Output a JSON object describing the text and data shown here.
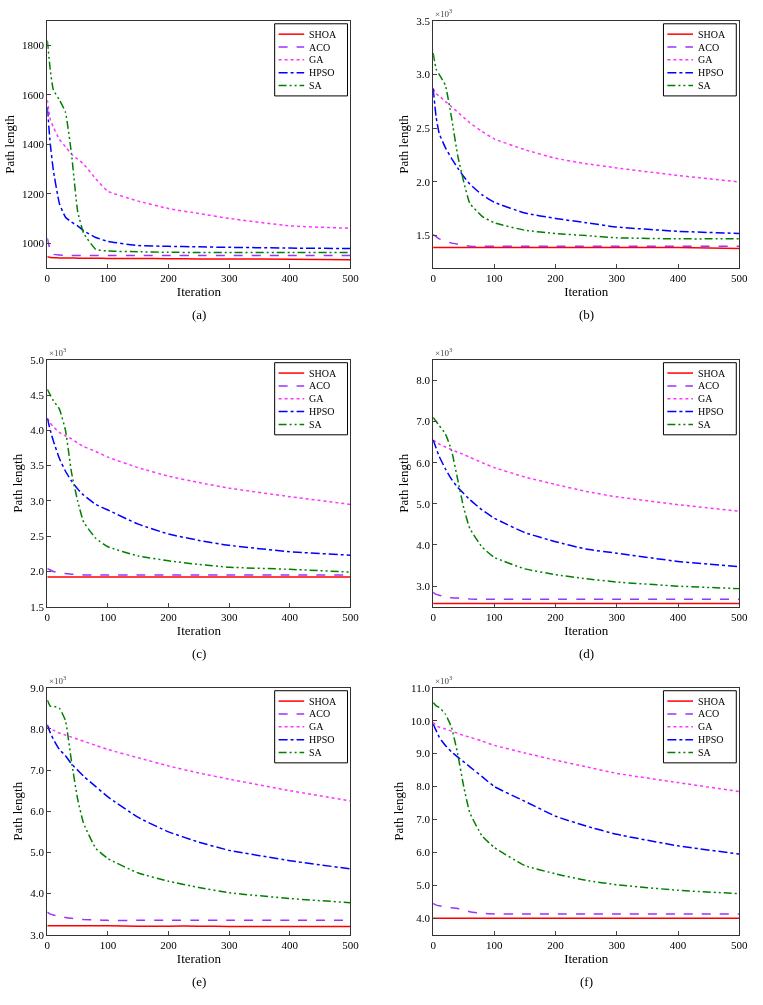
{
  "chart_data": [
    {
      "type": "line",
      "title": "(a)",
      "xlabel": "Iteration",
      "ylabel": "Path length",
      "legend": "top right",
      "x": [
        0,
        5,
        10,
        20,
        30,
        40,
        50,
        60,
        80,
        100,
        150,
        200,
        250,
        300,
        400,
        500
      ],
      "xlim": [
        0,
        500
      ],
      "xticks": [
        0,
        100,
        200,
        300,
        400,
        500
      ],
      "ylim": [
        900,
        1900
      ],
      "yticks": [
        1000,
        1200,
        1400,
        1600,
        1800
      ],
      "series": [
        {
          "name": "SHOA",
          "color": "#ff0000",
          "line_style": "solid",
          "values": [
            945,
            942,
            941,
            940,
            940,
            940,
            939,
            939,
            939,
            938,
            938,
            937,
            936,
            936,
            935,
            933
          ]
        },
        {
          "name": "ACO",
          "color": "#9933ff",
          "line_style": "dashed",
          "values": [
            1020,
            970,
            955,
            952,
            951,
            950,
            950,
            950,
            950,
            950,
            950,
            950,
            950,
            950,
            950,
            950
          ]
        },
        {
          "name": "GA",
          "color": "#ff33ff",
          "line_style": "dotted",
          "values": [
            1580,
            1500,
            1470,
            1420,
            1390,
            1360,
            1340,
            1320,
            1260,
            1210,
            1170,
            1140,
            1120,
            1100,
            1070,
            1060
          ]
        },
        {
          "name": "HPSO",
          "color": "#0000ff",
          "line_style": "dashdot",
          "values": [
            1550,
            1400,
            1295,
            1160,
            1105,
            1085,
            1070,
            1050,
            1023,
            1007,
            990,
            987,
            985,
            983,
            980,
            978
          ]
        },
        {
          "name": "SA",
          "color": "#008000",
          "line_style": "dashdotdot",
          "values": [
            1820,
            1700,
            1620,
            1580,
            1530,
            1360,
            1130,
            1040,
            975,
            968,
            965,
            963,
            962,
            962,
            962,
            962
          ]
        }
      ]
    },
    {
      "type": "line",
      "title": "(b)",
      "xlabel": "Iteration",
      "ylabel": "Path length",
      "legend": "top right",
      "annotations": [
        "×10$^{3}$"
      ],
      "x": [
        0,
        5,
        10,
        20,
        30,
        40,
        50,
        60,
        80,
        100,
        150,
        200,
        250,
        300,
        400,
        500
      ],
      "xlim": [
        0,
        500
      ],
      "xticks": [
        0,
        100,
        200,
        300,
        400,
        500
      ],
      "ylim": [
        1.2,
        3.5
      ],
      "yticks": [
        1.5,
        {
          "value": 2,
          "label": "2.0"
        },
        2.5,
        {
          "value": 3,
          "label": "3.0"
        },
        3.5
      ],
      "series": [
        {
          "name": "SHOA",
          "color": "#ff0000",
          "line_style": "solid",
          "values": [
            1.39,
            1.39,
            1.39,
            1.39,
            1.39,
            1.39,
            1.39,
            1.39,
            1.39,
            1.39,
            1.39,
            1.39,
            1.39,
            1.39,
            1.39,
            1.38
          ]
        },
        {
          "name": "ACO",
          "color": "#9933ff",
          "line_style": "dashed",
          "values": [
            1.51,
            1.49,
            1.47,
            1.45,
            1.43,
            1.42,
            1.41,
            1.4,
            1.4,
            1.4,
            1.4,
            1.4,
            1.4,
            1.4,
            1.4,
            1.4
          ]
        },
        {
          "name": "GA",
          "color": "#ff33ff",
          "line_style": "dotted",
          "values": [
            2.87,
            2.82,
            2.8,
            2.75,
            2.7,
            2.65,
            2.6,
            2.55,
            2.47,
            2.4,
            2.3,
            2.22,
            2.17,
            2.13,
            2.06,
            2.0
          ]
        },
        {
          "name": "HPSO",
          "color": "#0000ff",
          "line_style": "dashdot",
          "values": [
            2.87,
            2.6,
            2.45,
            2.32,
            2.22,
            2.13,
            2.05,
            1.98,
            1.88,
            1.81,
            1.71,
            1.66,
            1.62,
            1.58,
            1.54,
            1.52
          ]
        },
        {
          "name": "SA",
          "color": "#008000",
          "line_style": "dashdotdot",
          "values": [
            3.2,
            3.05,
            3.0,
            2.9,
            2.6,
            2.25,
            2.0,
            1.8,
            1.68,
            1.62,
            1.55,
            1.52,
            1.5,
            1.48,
            1.47,
            1.47
          ]
        }
      ]
    },
    {
      "type": "line",
      "title": "(c)",
      "xlabel": "Iteration",
      "ylabel": "Path length",
      "legend": "top right",
      "annotations": [
        "×10$^{3}$"
      ],
      "x": [
        0,
        5,
        10,
        20,
        30,
        40,
        50,
        60,
        80,
        100,
        150,
        200,
        250,
        300,
        400,
        500
      ],
      "xlim": [
        0,
        500
      ],
      "xticks": [
        0,
        100,
        200,
        300,
        400,
        500
      ],
      "ylim": [
        1.5,
        5.0
      ],
      "yticks": [
        1.5,
        {
          "value": 2,
          "label": "2.0"
        },
        2.5,
        {
          "value": 3,
          "label": "3.0"
        },
        3.5,
        {
          "value": 4,
          "label": "4.0"
        },
        4.5,
        {
          "value": 5,
          "label": "5.0"
        }
      ],
      "series": [
        {
          "name": "SHOA",
          "color": "#ff0000",
          "line_style": "solid",
          "values": [
            1.92,
            1.92,
            1.92,
            1.92,
            1.92,
            1.92,
            1.92,
            1.92,
            1.92,
            1.92,
            1.92,
            1.92,
            1.92,
            1.92,
            1.92,
            1.92
          ]
        },
        {
          "name": "ACO",
          "color": "#9933ff",
          "line_style": "dashed",
          "values": [
            2.04,
            2.02,
            2.0,
            1.98,
            1.97,
            1.96,
            1.96,
            1.95,
            1.95,
            1.95,
            1.95,
            1.95,
            1.95,
            1.95,
            1.95,
            1.95
          ]
        },
        {
          "name": "GA",
          "color": "#ff33ff",
          "line_style": "dotted",
          "values": [
            4.17,
            4.1,
            4.05,
            3.97,
            3.92,
            3.88,
            3.82,
            3.77,
            3.7,
            3.62,
            3.47,
            3.35,
            3.26,
            3.18,
            3.06,
            2.95
          ]
        },
        {
          "name": "HPSO",
          "color": "#0000ff",
          "line_style": "dashdot",
          "values": [
            4.17,
            4.0,
            3.85,
            3.6,
            3.42,
            3.28,
            3.17,
            3.08,
            2.95,
            2.87,
            2.67,
            2.53,
            2.44,
            2.37,
            2.28,
            2.23
          ]
        },
        {
          "name": "SA",
          "color": "#008000",
          "line_style": "dashdotdot",
          "values": [
            4.58,
            4.5,
            4.42,
            4.3,
            4.0,
            3.4,
            3.0,
            2.7,
            2.47,
            2.35,
            2.22,
            2.15,
            2.1,
            2.06,
            2.03,
            1.99
          ]
        }
      ]
    },
    {
      "type": "line",
      "title": "(d)",
      "xlabel": "Iteration",
      "ylabel": "Path length",
      "legend": "top right",
      "annotations": [
        "×10$^{3}$"
      ],
      "x": [
        0,
        5,
        10,
        20,
        30,
        40,
        50,
        60,
        80,
        100,
        150,
        200,
        250,
        300,
        400,
        500
      ],
      "xlim": [
        0,
        500
      ],
      "xticks": [
        0,
        100,
        200,
        300,
        400,
        500
      ],
      "ylim": [
        2.5,
        8.5
      ],
      "yticks": [
        {
          "value": 3,
          "label": "3.0"
        },
        {
          "value": 4,
          "label": "4.0"
        },
        {
          "value": 5,
          "label": "5.0"
        },
        {
          "value": 6,
          "label": "6.0"
        },
        {
          "value": 7,
          "label": "7.0"
        },
        {
          "value": 8,
          "label": "8.0"
        }
      ],
      "series": [
        {
          "name": "SHOA",
          "color": "#ff0000",
          "line_style": "solid",
          "values": [
            2.58,
            2.58,
            2.58,
            2.58,
            2.58,
            2.58,
            2.58,
            2.58,
            2.58,
            2.58,
            2.58,
            2.58,
            2.58,
            2.58,
            2.58,
            2.58
          ]
        },
        {
          "name": "ACO",
          "color": "#9933ff",
          "line_style": "dashed",
          "values": [
            2.85,
            2.8,
            2.78,
            2.75,
            2.72,
            2.71,
            2.7,
            2.69,
            2.68,
            2.68,
            2.68,
            2.68,
            2.68,
            2.68,
            2.68,
            2.68
          ]
        },
        {
          "name": "GA",
          "color": "#ff33ff",
          "line_style": "dotted",
          "values": [
            6.55,
            6.5,
            6.45,
            6.38,
            6.32,
            6.25,
            6.2,
            6.13,
            6.0,
            5.88,
            5.65,
            5.47,
            5.3,
            5.17,
            4.98,
            4.82
          ]
        },
        {
          "name": "HPSO",
          "color": "#0000ff",
          "line_style": "dashdot",
          "values": [
            6.55,
            6.35,
            6.15,
            5.85,
            5.6,
            5.4,
            5.25,
            5.1,
            4.85,
            4.65,
            4.3,
            4.08,
            3.9,
            3.8,
            3.6,
            3.47
          ]
        },
        {
          "name": "SA",
          "color": "#008000",
          "line_style": "dashdotdot",
          "values": [
            7.1,
            7.0,
            6.9,
            6.7,
            6.3,
            5.6,
            4.9,
            4.4,
            3.95,
            3.7,
            3.42,
            3.28,
            3.18,
            3.1,
            3.0,
            2.94
          ]
        }
      ]
    },
    {
      "type": "line",
      "title": "(e)",
      "xlabel": "Iteration",
      "ylabel": "Path length",
      "legend": "top right",
      "annotations": [
        "×10$^{3}$"
      ],
      "x": [
        0,
        5,
        10,
        20,
        30,
        40,
        50,
        60,
        80,
        100,
        150,
        200,
        250,
        300,
        400,
        500
      ],
      "xlim": [
        0,
        500
      ],
      "xticks": [
        0,
        100,
        200,
        300,
        400,
        500
      ],
      "ylim": [
        3.0,
        9.0
      ],
      "yticks": [
        {
          "value": 3,
          "label": "3.0"
        },
        {
          "value": 4,
          "label": "4.0"
        },
        {
          "value": 5,
          "label": "5.0"
        },
        {
          "value": 6,
          "label": "6.0"
        },
        {
          "value": 7,
          "label": "7.0"
        },
        {
          "value": 8,
          "label": "8.0"
        },
        {
          "value": 9,
          "label": "9.0"
        }
      ],
      "series": [
        {
          "name": "SHOA",
          "color": "#ff0000",
          "line_style": "solid",
          "values": [
            3.22,
            3.22,
            3.22,
            3.22,
            3.22,
            3.22,
            3.22,
            3.22,
            3.22,
            3.22,
            3.21,
            3.21,
            3.21,
            3.2,
            3.2,
            3.2
          ]
        },
        {
          "name": "ACO",
          "color": "#9933ff",
          "line_style": "dashed",
          "values": [
            3.55,
            3.5,
            3.48,
            3.45,
            3.42,
            3.4,
            3.38,
            3.37,
            3.36,
            3.35,
            3.35,
            3.35,
            3.35,
            3.35,
            3.35,
            3.35
          ]
        },
        {
          "name": "GA",
          "color": "#ff33ff",
          "line_style": "dotted",
          "values": [
            8.05,
            8.0,
            7.97,
            7.9,
            7.85,
            7.8,
            7.75,
            7.7,
            7.6,
            7.5,
            7.3,
            7.1,
            6.93,
            6.78,
            6.5,
            6.25
          ]
        },
        {
          "name": "HPSO",
          "color": "#0000ff",
          "line_style": "dashdot",
          "values": [
            8.1,
            7.9,
            7.75,
            7.5,
            7.35,
            7.15,
            7.0,
            6.85,
            6.6,
            6.35,
            5.85,
            5.5,
            5.25,
            5.05,
            4.8,
            4.6
          ]
        },
        {
          "name": "SA",
          "color": "#008000",
          "line_style": "dashdotdot",
          "values": [
            8.7,
            8.55,
            8.55,
            8.5,
            8.2,
            7.2,
            6.3,
            5.7,
            5.1,
            4.85,
            4.5,
            4.3,
            4.15,
            4.02,
            3.88,
            3.78
          ]
        }
      ]
    },
    {
      "type": "line",
      "title": "(f)",
      "xlabel": "Iteration",
      "ylabel": "Path length",
      "legend": "top right",
      "annotations": [
        "×10$^{3}$"
      ],
      "x": [
        0,
        5,
        10,
        20,
        30,
        40,
        50,
        60,
        80,
        100,
        150,
        200,
        250,
        300,
        400,
        500
      ],
      "xlim": [
        0,
        500
      ],
      "xticks": [
        0,
        100,
        200,
        300,
        400,
        500
      ],
      "ylim": [
        3.5,
        11.0
      ],
      "yticks": [
        {
          "value": 4,
          "label": "4.0"
        },
        {
          "value": 5,
          "label": "5.0"
        },
        {
          "value": 6,
          "label": "6.0"
        },
        {
          "value": 7,
          "label": "7.0"
        },
        {
          "value": 8,
          "label": "8.0"
        },
        {
          "value": 9,
          "label": "9.0"
        },
        {
          "value": 10,
          "label": "10.0"
        },
        {
          "value": 11,
          "label": "11.0"
        }
      ],
      "series": [
        {
          "name": "SHOA",
          "color": "#ff0000",
          "line_style": "solid",
          "values": [
            4.0,
            4.0,
            4.0,
            4.0,
            4.0,
            4.0,
            4.0,
            4.0,
            4.0,
            4.0,
            4.0,
            4.0,
            4.0,
            4.0,
            4.0,
            4.0
          ]
        },
        {
          "name": "ACO",
          "color": "#9933ff",
          "line_style": "dashed",
          "values": [
            4.45,
            4.4,
            4.38,
            4.35,
            4.32,
            4.3,
            4.25,
            4.2,
            4.15,
            4.13,
            4.13,
            4.13,
            4.13,
            4.13,
            4.13,
            4.13
          ]
        },
        {
          "name": "GA",
          "color": "#ff33ff",
          "line_style": "dotted",
          "values": [
            9.95,
            9.85,
            9.8,
            9.75,
            9.68,
            9.62,
            9.55,
            9.5,
            9.38,
            9.25,
            9.02,
            8.8,
            8.6,
            8.4,
            8.12,
            7.85
          ]
        },
        {
          "name": "HPSO",
          "color": "#0000ff",
          "line_style": "dashdot",
          "values": [
            9.9,
            9.7,
            9.5,
            9.25,
            9.05,
            8.9,
            8.75,
            8.6,
            8.3,
            8.0,
            7.55,
            7.1,
            6.8,
            6.55,
            6.2,
            5.95
          ]
        },
        {
          "name": "SA",
          "color": "#008000",
          "line_style": "dashdotdot",
          "values": [
            10.55,
            10.45,
            10.4,
            10.2,
            9.8,
            9.0,
            8.0,
            7.2,
            6.5,
            6.15,
            5.6,
            5.35,
            5.15,
            5.02,
            4.85,
            4.75
          ]
        }
      ]
    }
  ]
}
